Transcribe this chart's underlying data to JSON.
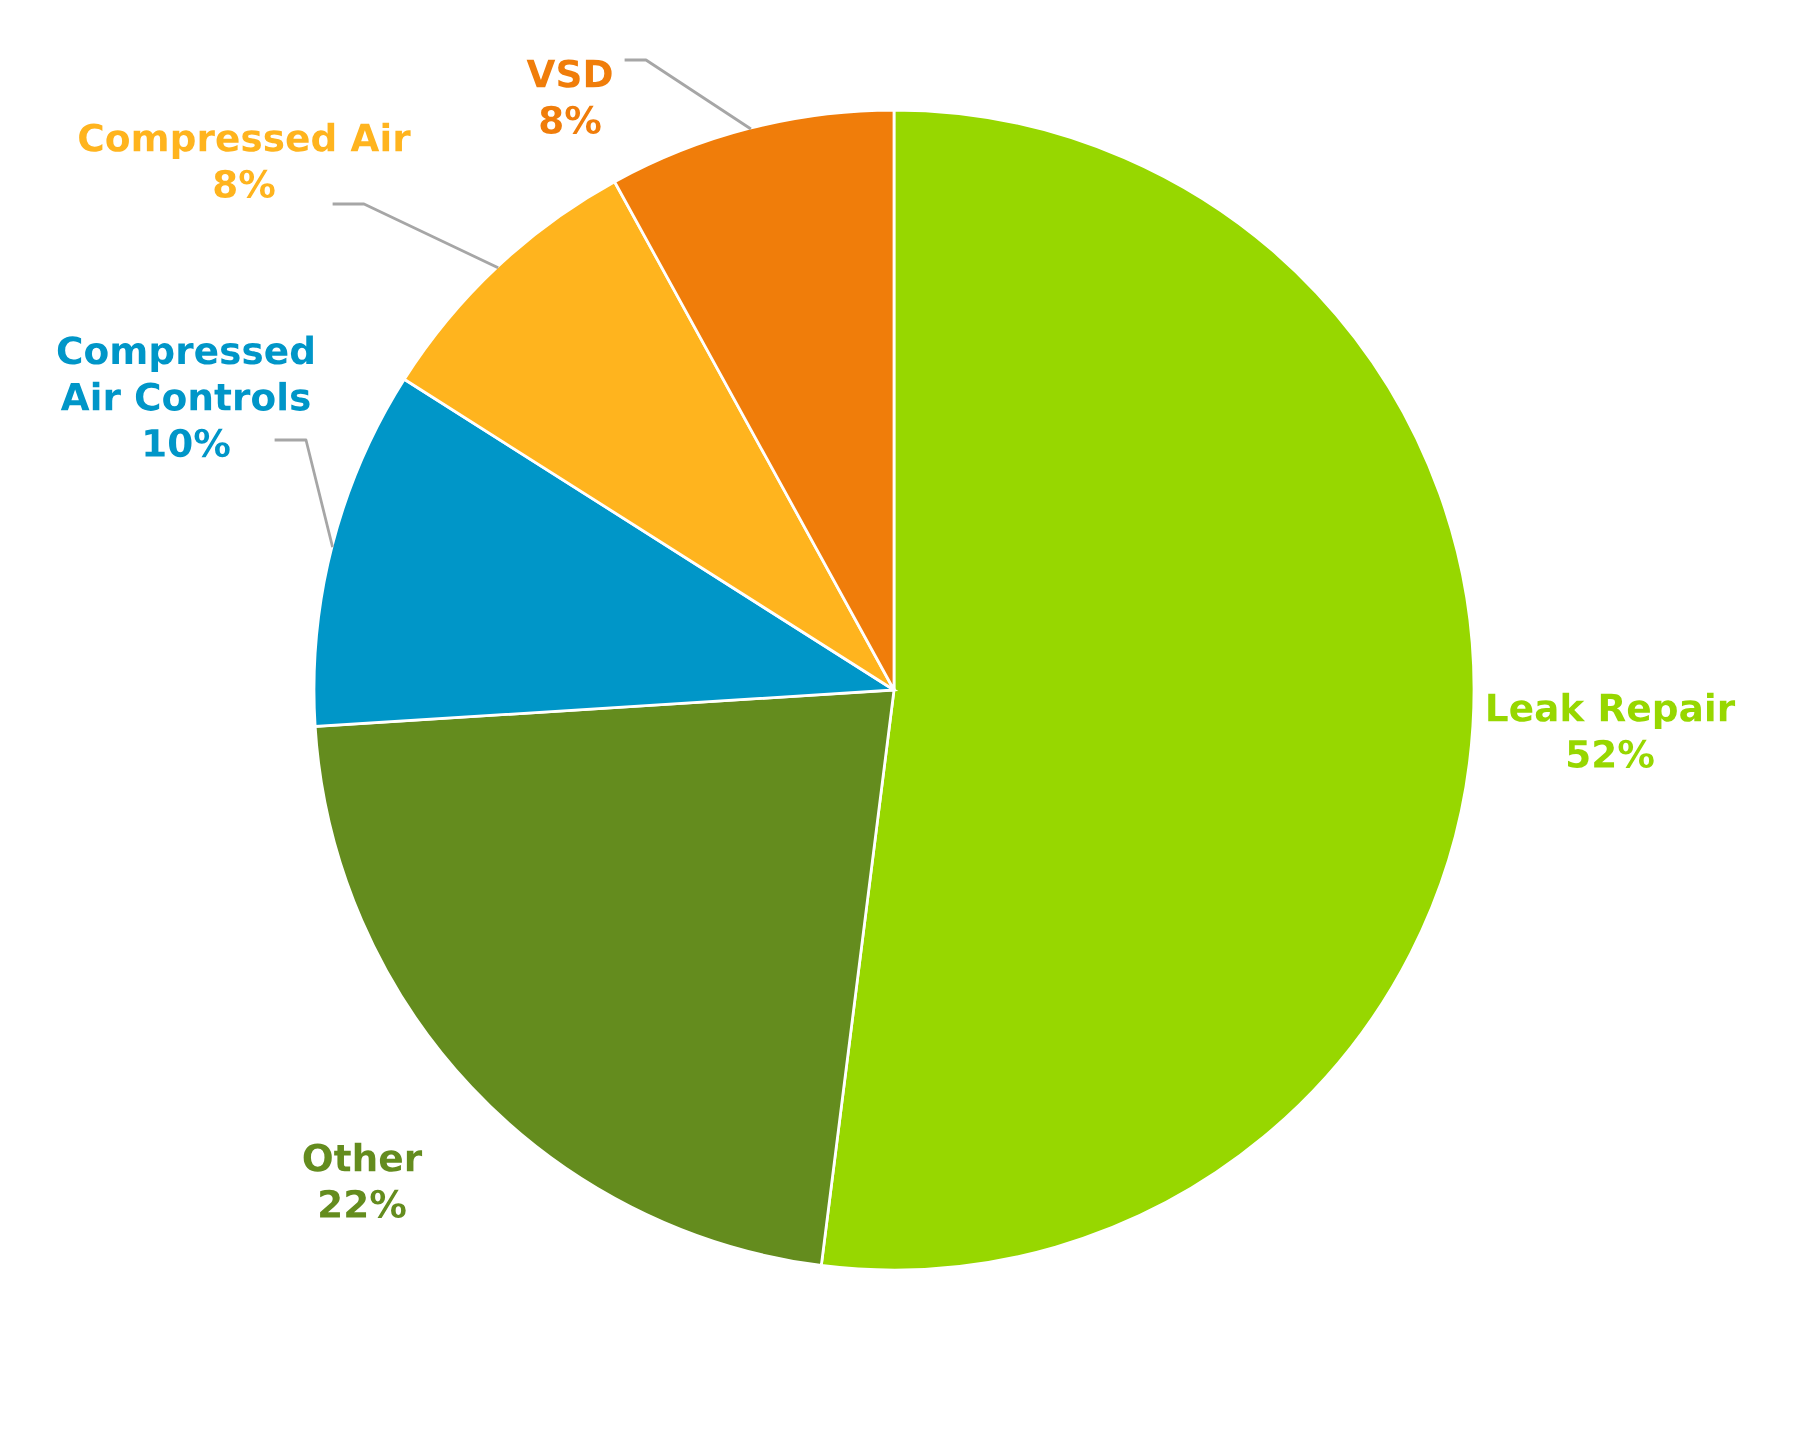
{
  "chart_data": {
    "type": "pie",
    "categories": [
      "Leak Repair",
      "Other",
      "Compressed Air Controls",
      "Compressed Air",
      "VSD"
    ],
    "values": [
      52,
      22,
      10,
      8,
      8
    ],
    "value_labels": [
      "52%",
      "22%",
      "10%",
      "8%",
      "8%"
    ],
    "colors": [
      "#97d700",
      "#648c1e",
      "#0096c8",
      "#ffb41e",
      "#f07d0a"
    ]
  }
}
